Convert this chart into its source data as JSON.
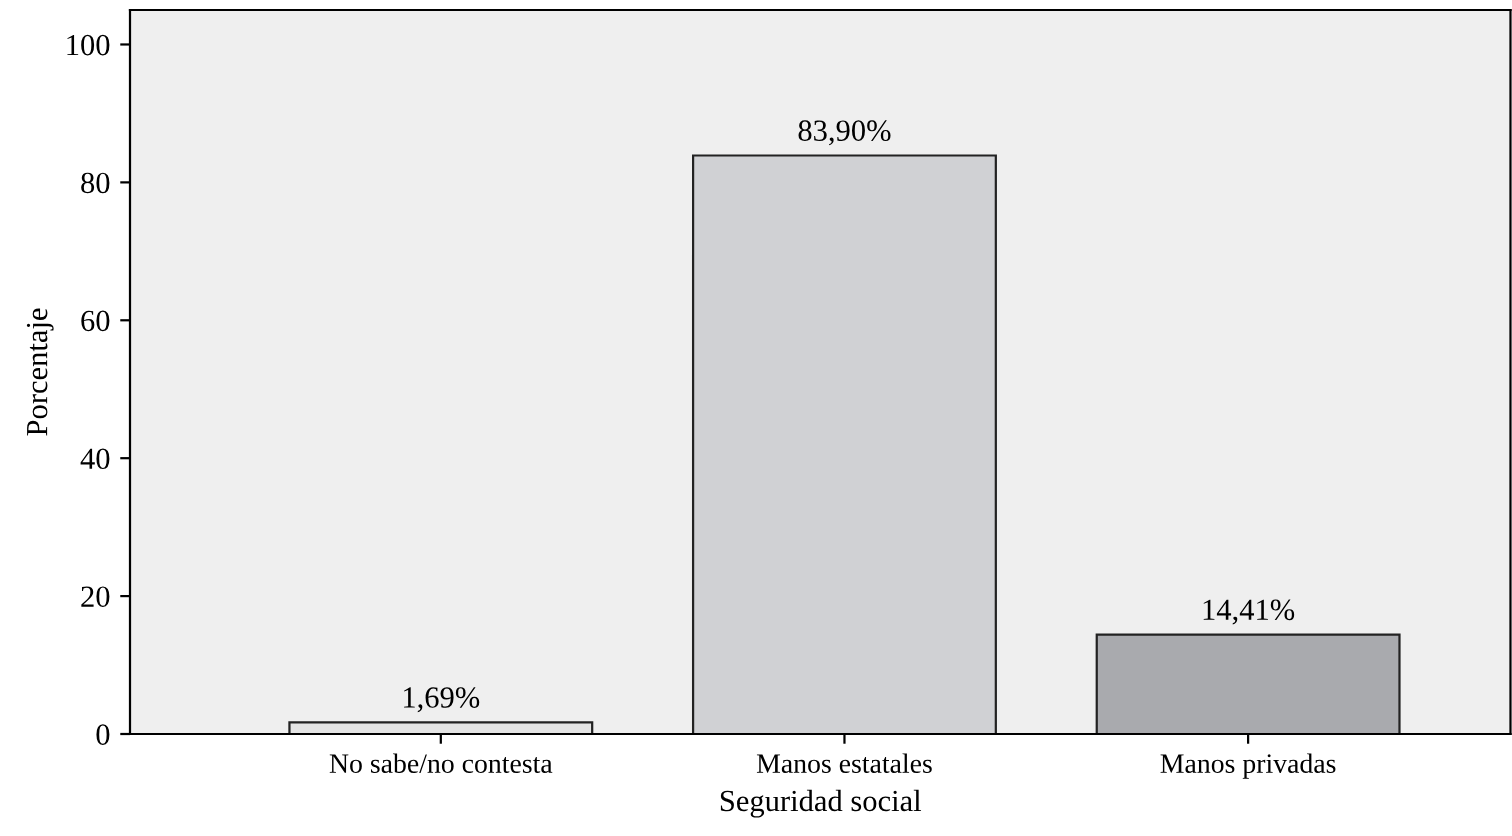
{
  "chart_data": {
    "type": "bar",
    "xlabel": "Seguridad social",
    "ylabel": "Porcentaje",
    "categories": [
      "No sabe/no contesta",
      "Manos estatales",
      "Manos privadas"
    ],
    "values": [
      1.69,
      83.9,
      14.41
    ],
    "colors": [
      "#e4e4e4",
      "#d0d1d4",
      "#a9aaae"
    ],
    "value_labels": [
      "1,69%",
      "83,90%",
      "14,41%"
    ],
    "ylim": [
      0,
      105
    ],
    "yticks": [
      0,
      20,
      40,
      60,
      80,
      100
    ],
    "grid": false,
    "legend": false
  }
}
